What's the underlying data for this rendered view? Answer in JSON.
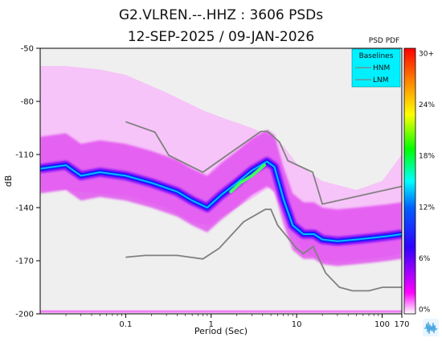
{
  "chart_data": {
    "type": "heatmap",
    "title": "G2.VLREN.--.HHZ : 3606 PSDs",
    "subtitle": "12-SEP-2025 / 09-JAN-2026",
    "xlabel": "Period (Sec)",
    "ylabel": "dB",
    "x_scale": "log",
    "xlim": [
      0.01,
      170
    ],
    "ylim": [
      -200,
      -50
    ],
    "x_ticks": [
      {
        "value": 0.1,
        "label": "0.1"
      },
      {
        "value": 1,
        "label": "1"
      },
      {
        "value": 10,
        "label": "10"
      },
      {
        "value": 100,
        "label": "100"
      },
      {
        "value": 170,
        "label": "170"
      }
    ],
    "y_ticks": [
      {
        "value": -50,
        "label": "-50"
      },
      {
        "value": -80,
        "label": "-80"
      },
      {
        "value": -110,
        "label": "-110"
      },
      {
        "value": -140,
        "label": "-140"
      },
      {
        "value": -170,
        "label": "-170"
      },
      {
        "value": -200,
        "label": "-200"
      }
    ],
    "colorbar": {
      "title": "PSD PDF",
      "ticks": [
        "30+",
        "24%",
        "18%",
        "12%",
        "6%",
        "0%"
      ],
      "colors": [
        "#ff0000",
        "#ff7f00",
        "#ffff00",
        "#00ff00",
        "#00ffff",
        "#0000ff",
        "#ff00ff",
        "#ffffff"
      ]
    },
    "legend": {
      "title": "Baselines",
      "position": "top-right",
      "entries": [
        {
          "name": "HNM",
          "color": "#808080"
        },
        {
          "name": "LNM",
          "color": "#808080"
        }
      ]
    },
    "series": [
      {
        "name": "HNM",
        "x": [
          0.1,
          0.22,
          0.32,
          0.8,
          3.8,
          4.6,
          6.3,
          7.9,
          15.4,
          20,
          170
        ],
        "y": [
          -91.5,
          -97.4,
          -110.5,
          -120,
          -97,
          -97,
          -103,
          -113.5,
          -120,
          -138,
          -128
        ]
      },
      {
        "name": "LNM",
        "x": [
          0.1,
          0.17,
          0.4,
          0.8,
          1.24,
          2.4,
          4.3,
          5,
          6,
          10,
          12,
          15.6,
          21.9,
          31.6,
          45,
          70,
          101,
          154,
          170
        ],
        "y": [
          -168,
          -167,
          -167,
          -169,
          -163,
          -148,
          -141,
          -141,
          -150,
          -163,
          -166,
          -162,
          -177,
          -185,
          -187,
          -187,
          -185,
          -185,
          -185
        ]
      }
    ],
    "density": {
      "upper_envelope": {
        "x": [
          0.01,
          0.02,
          0.05,
          0.1,
          0.3,
          0.8,
          1.5,
          3,
          5,
          7,
          10,
          20,
          50,
          100,
          170
        ],
        "y": [
          -60,
          -60,
          -62,
          -65,
          -75,
          -85,
          -90,
          -95,
          -100,
          -105,
          -115,
          -125,
          -130,
          -125,
          -110
        ]
      },
      "mode_curve": {
        "x": [
          0.01,
          0.02,
          0.03,
          0.05,
          0.1,
          0.2,
          0.4,
          0.6,
          0.9,
          1.3,
          2,
          3,
          4.5,
          5.5,
          7,
          9,
          12,
          16,
          20,
          30,
          50,
          80,
          120,
          170
        ],
        "y": [
          -118,
          -116,
          -122,
          -120,
          -122,
          -126,
          -131,
          -136,
          -140,
          -133,
          -126,
          -119,
          -114,
          -117,
          -135,
          -150,
          -155,
          -155,
          -158,
          -159,
          -158,
          -157,
          -156,
          -155
        ]
      },
      "lower_envelope": {
        "x": [
          0.01,
          0.02,
          0.05,
          0.1,
          0.3,
          0.6,
          1,
          1.3,
          2,
          3,
          5,
          8,
          12,
          20,
          40,
          100,
          170
        ],
        "y": [
          -130,
          -130,
          -132,
          -133,
          -140,
          -148,
          -150,
          -145,
          -140,
          -135,
          -128,
          -150,
          -165,
          -170,
          -170,
          -168,
          -166
        ]
      },
      "peak_segment": {
        "x": [
          1.7,
          2.2,
          3,
          4.2
        ],
        "y": [
          -131,
          -126,
          -122,
          -116
        ]
      }
    }
  }
}
